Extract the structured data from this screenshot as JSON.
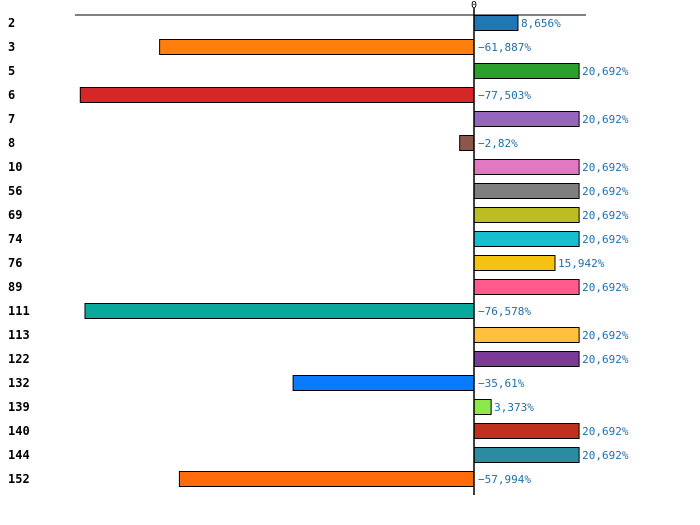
{
  "chart_data": {
    "type": "bar",
    "orientation": "horizontal",
    "grid": false,
    "xlim": [
      -80,
      30
    ],
    "x_ticks": [
      {
        "value": 0,
        "label": "0"
      }
    ],
    "categories": [
      "2",
      "3",
      "5",
      "6",
      "7",
      "8",
      "10",
      "56",
      "69",
      "74",
      "76",
      "89",
      "111",
      "113",
      "122",
      "132",
      "139",
      "140",
      "144",
      "152"
    ],
    "values": [
      8.656,
      -61.887,
      20.692,
      -77.503,
      20.692,
      -2.82,
      20.692,
      20.692,
      20.692,
      20.692,
      15.942,
      20.692,
      -76.578,
      20.692,
      20.692,
      -35.61,
      3.373,
      20.692,
      20.692,
      -57.994
    ],
    "value_labels": [
      "8,656%",
      "−61,887%",
      "20,692%",
      "−77,503%",
      "20,692%",
      "−2,82%",
      "20,692%",
      "20,692%",
      "20,692%",
      "20,692%",
      "15,942%",
      "20,692%",
      "−76,578%",
      "20,692%",
      "20,692%",
      "−35,61%",
      "3,373%",
      "20,692%",
      "20,692%",
      "−57,994%"
    ],
    "colors": [
      "#1f77b4",
      "#ff7f0e",
      "#2ca02c",
      "#d62728",
      "#9467bd",
      "#8c564b",
      "#e377c2",
      "#7f7f7f",
      "#bcbd22",
      "#17becf",
      "#f5c211",
      "#ff5a8c",
      "#0aa89a",
      "#ffbf3f",
      "#7a3b96",
      "#0a7bff",
      "#8fe84a",
      "#c0301f",
      "#2b8ca0",
      "#ff6a0a"
    ]
  }
}
